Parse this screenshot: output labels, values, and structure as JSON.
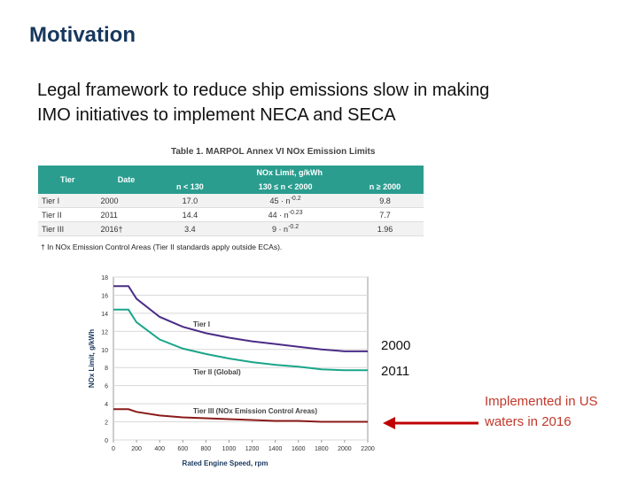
{
  "title": "Motivation",
  "body": [
    "Legal framework to reduce ship emissions slow in making",
    "IMO initiatives to implement NECA and SECA"
  ],
  "table": {
    "caption": "Table 1. MARPOL Annex VI NOx Emission Limits",
    "header": {
      "tier": "Tier",
      "date": "Date",
      "limit": "NOx Limit, g/kWh",
      "sub": [
        "n < 130",
        "130 ≤ n < 2000",
        "n ≥ 2000"
      ]
    },
    "rows": [
      [
        "Tier I",
        "2000",
        "17.0",
        {
          "base": "45 · n",
          "exp": "-0.2"
        },
        "9.8"
      ],
      [
        "Tier II",
        "2011",
        "14.4",
        {
          "base": "44 · n",
          "exp": "-0.23"
        },
        "7.7"
      ],
      [
        "Tier III",
        "2016†",
        "3.4",
        {
          "base": "9 · n",
          "exp": "-0.2"
        },
        "1.96"
      ]
    ],
    "footnote": "† In NOx Emission Control Areas (Tier II standards apply outside ECAs)."
  },
  "chart_data": {
    "type": "line",
    "x": [
      0,
      130,
      200,
      400,
      600,
      800,
      1000,
      1200,
      1400,
      1600,
      1800,
      2000,
      2200
    ],
    "series": [
      {
        "name": "Tier I",
        "color": "#4b2c86",
        "values": [
          17.0,
          17.0,
          15.6,
          13.6,
          12.5,
          11.8,
          11.3,
          10.9,
          10.6,
          10.3,
          10.0,
          9.8,
          9.8
        ]
      },
      {
        "name": "Tier II (Global)",
        "color": "#1aa58a",
        "values": [
          14.4,
          14.4,
          13.0,
          11.1,
          10.1,
          9.5,
          9.0,
          8.6,
          8.3,
          8.1,
          7.8,
          7.7,
          7.7
        ]
      },
      {
        "name": "Tier III (NOx Emission Control Areas)",
        "color": "#8b1a1a",
        "values": [
          3.4,
          3.4,
          3.1,
          2.7,
          2.5,
          2.4,
          2.3,
          2.2,
          2.1,
          2.1,
          2.0,
          2.0,
          2.0
        ]
      }
    ],
    "xlim": [
      0,
      2200
    ],
    "ylim": [
      0,
      18
    ],
    "xticks": [
      0,
      200,
      400,
      600,
      800,
      1000,
      1200,
      1400,
      1600,
      1800,
      2000,
      2200
    ],
    "yticks": [
      0,
      2,
      4,
      6,
      8,
      10,
      12,
      14,
      16,
      18
    ],
    "xlabel": "Rated Engine Speed, rpm",
    "ylabel": "NOx Limit, g/kWh"
  },
  "annotations": [
    "2000",
    "2011",
    "Implemented in US",
    "waters in 2016"
  ]
}
